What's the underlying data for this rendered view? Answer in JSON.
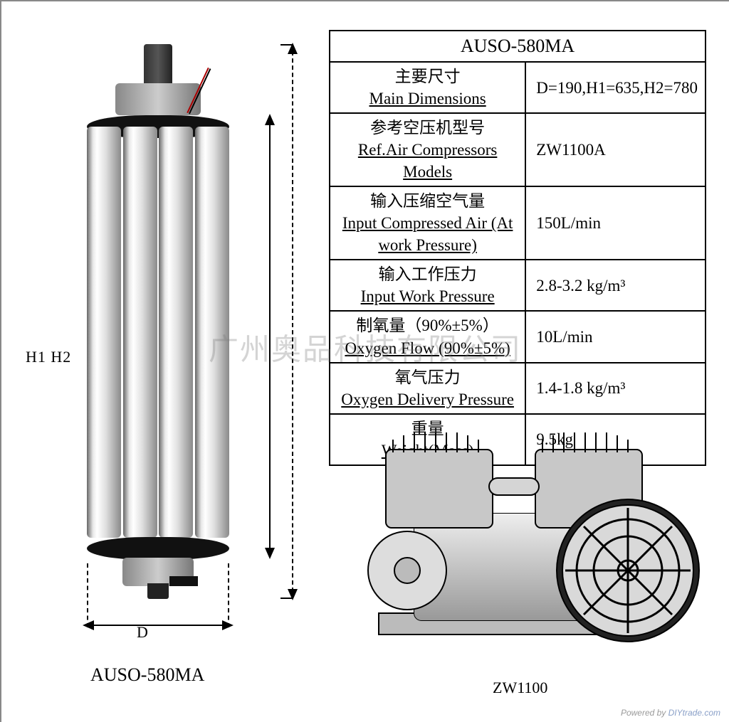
{
  "product": {
    "model": "AUSO-580MA",
    "dim_label_h": "H1 H2",
    "dim_label_d": "D"
  },
  "spec": {
    "title": "AUSO-580MA",
    "rows": [
      {
        "cn": "主要尺寸",
        "en": "Main Dimensions",
        "value": "D=190,H1=635,H2=780"
      },
      {
        "cn": "参考空压机型号",
        "en": "Ref.Air Compressors Models",
        "value": "ZW1100A"
      },
      {
        "cn": "输入压缩空气量",
        "en": "Input Compressed Air (At work Pressure)",
        "value": "150L/min"
      },
      {
        "cn": "输入工作压力",
        "en": "Input Work Pressure",
        "value": "2.8-3.2 kg/m³"
      },
      {
        "cn": "制氧量（90%±5%）",
        "en": "Oxygen Flow (90%±5%)",
        "value": "10L/min"
      },
      {
        "cn": "氧气压力",
        "en": "Oxygen Delivery Pressure",
        "value": "1.4-1.8 kg/m³"
      },
      {
        "cn": "重量",
        "en": "Weight(Mass)",
        "value": "9.5kg"
      }
    ]
  },
  "compressor": {
    "label": "ZW1100"
  },
  "watermark": "广州奥品科技有限公司",
  "footer": {
    "text": "Powered by ",
    "link": "DIYtrade.com"
  },
  "colors": {
    "border": "#000000",
    "metal_light": "#e8e8e8",
    "metal_dark": "#666666",
    "watermark": "rgba(120,120,120,0.32)"
  }
}
